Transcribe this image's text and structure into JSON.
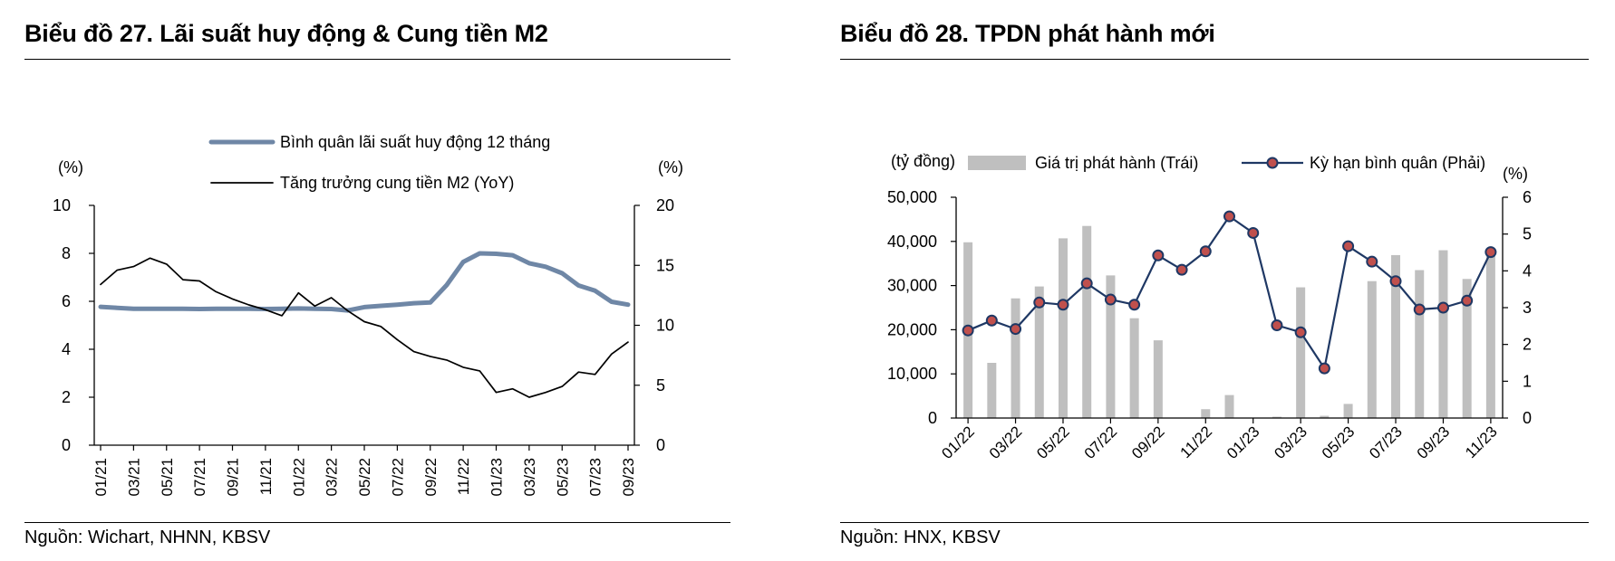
{
  "charts": [
    {
      "title": "Biểu đồ 27. Lãi suất huy động & Cung tiền M2",
      "source": "Nguồn: Wichart, NHNN, KBSV",
      "chart_data": {
        "type": "line",
        "title": "Biểu đồ 27. Lãi suất huy động & Cung tiền M2",
        "y_left_unit": "(%)",
        "y_right_unit": "(%)",
        "y_left_range": [
          0,
          10
        ],
        "y_left_ticks": [
          0,
          2,
          4,
          6,
          8,
          10
        ],
        "y_right_range": [
          0,
          20
        ],
        "y_right_ticks": [
          0,
          5,
          10,
          15,
          20
        ],
        "x_tick_labels": [
          "01/21",
          "03/21",
          "05/21",
          "07/21",
          "09/21",
          "11/21",
          "01/22",
          "03/22",
          "05/22",
          "07/22",
          "09/22",
          "11/22",
          "01/23",
          "03/23",
          "05/23",
          "07/23",
          "09/23"
        ],
        "grid": false,
        "legend_position": "top-center",
        "x": [
          "01/21",
          "02/21",
          "03/21",
          "04/21",
          "05/21",
          "06/21",
          "07/21",
          "08/21",
          "09/21",
          "10/21",
          "11/21",
          "12/21",
          "01/22",
          "02/22",
          "03/22",
          "04/22",
          "05/22",
          "06/22",
          "07/22",
          "08/22",
          "09/22",
          "10/22",
          "11/22",
          "12/22",
          "01/23",
          "02/23",
          "03/23",
          "04/23",
          "05/23",
          "06/23",
          "07/23",
          "08/23",
          "09/23"
        ],
        "series": [
          {
            "name": "Bình quân lãi suất huy động 12 tháng",
            "axis": "left",
            "color": "#6f87a6",
            "values": [
              5.77,
              5.73,
              5.69,
              5.69,
              5.69,
              5.69,
              5.68,
              5.69,
              5.69,
              5.69,
              5.68,
              5.69,
              5.7,
              5.69,
              5.68,
              5.62,
              5.76,
              5.81,
              5.86,
              5.92,
              5.95,
              6.68,
              7.64,
              8.0,
              7.98,
              7.92,
              7.59,
              7.44,
              7.17,
              6.66,
              6.44,
              5.98,
              5.86
            ]
          },
          {
            "name": "Tăng trưởng cung tiền M2 (YoY)",
            "axis": "right",
            "color": "#000000",
            "values": [
              13.4,
              14.6,
              14.9,
              15.6,
              15.1,
              13.8,
              13.7,
              12.8,
              12.2,
              11.7,
              11.3,
              10.8,
              12.7,
              11.6,
              12.3,
              11.2,
              10.3,
              9.9,
              8.8,
              7.8,
              7.4,
              7.1,
              6.5,
              6.2,
              4.4,
              4.7,
              4.0,
              4.4,
              4.9,
              6.1,
              5.9,
              7.6,
              8.6
            ]
          }
        ]
      }
    },
    {
      "title": "Biểu đồ 28. TPDN phát hành mới",
      "source": "Nguồn: HNX, KBSV",
      "chart_data": {
        "type": "bar",
        "title": "Biểu đồ 28. TPDN phát hành mới",
        "y_left_unit": "(tỷ đồng)",
        "y_right_unit": "(%)",
        "y_left_range": [
          0,
          50000
        ],
        "y_left_ticks": [
          "0",
          "10,000",
          "20,000",
          "30,000",
          "40,000",
          "50,000"
        ],
        "y_left_tick_values": [
          0,
          10000,
          20000,
          30000,
          40000,
          50000
        ],
        "y_right_range": [
          0,
          6
        ],
        "y_right_ticks": [
          0,
          1,
          2,
          3,
          4,
          5,
          6
        ],
        "x_tick_labels": [
          "01/22",
          "03/22",
          "05/22",
          "07/22",
          "09/22",
          "11/22",
          "01/23",
          "03/23",
          "05/23",
          "07/23",
          "09/23",
          "11/23"
        ],
        "grid": false,
        "legend_position": "top",
        "categories": [
          "01/22",
          "02/22",
          "03/22",
          "04/22",
          "05/22",
          "06/22",
          "07/22",
          "08/22",
          "09/22",
          "10/22",
          "11/22",
          "12/22",
          "01/23",
          "02/23",
          "03/23",
          "04/23",
          "05/23",
          "06/23",
          "07/23",
          "08/23",
          "09/23",
          "10/23",
          "11/23"
        ],
        "series": [
          {
            "name": "Giá trị phát hành (Trái)",
            "type": "bar",
            "axis": "left",
            "color": "#bfbfbf",
            "values": [
              39800,
              12500,
              27100,
              29800,
              40700,
              43500,
              32300,
              22600,
              17600,
              0,
              2000,
              5200,
              0,
              300,
              29600,
              500,
              3200,
              31000,
              36900,
              33500,
              38000,
              31500,
              36800
            ]
          },
          {
            "name": "Kỳ hạn bình quân (Phải)",
            "type": "line",
            "axis": "right",
            "color": "#1f3864",
            "marker_color": "#c0504d",
            "values": [
              2.38,
              2.65,
              2.42,
              3.14,
              3.08,
              3.66,
              3.22,
              3.08,
              4.42,
              4.03,
              4.53,
              5.48,
              5.03,
              2.52,
              2.33,
              1.35,
              4.67,
              4.25,
              3.72,
              2.95,
              3.0,
              3.19,
              4.51
            ]
          }
        ]
      }
    }
  ]
}
